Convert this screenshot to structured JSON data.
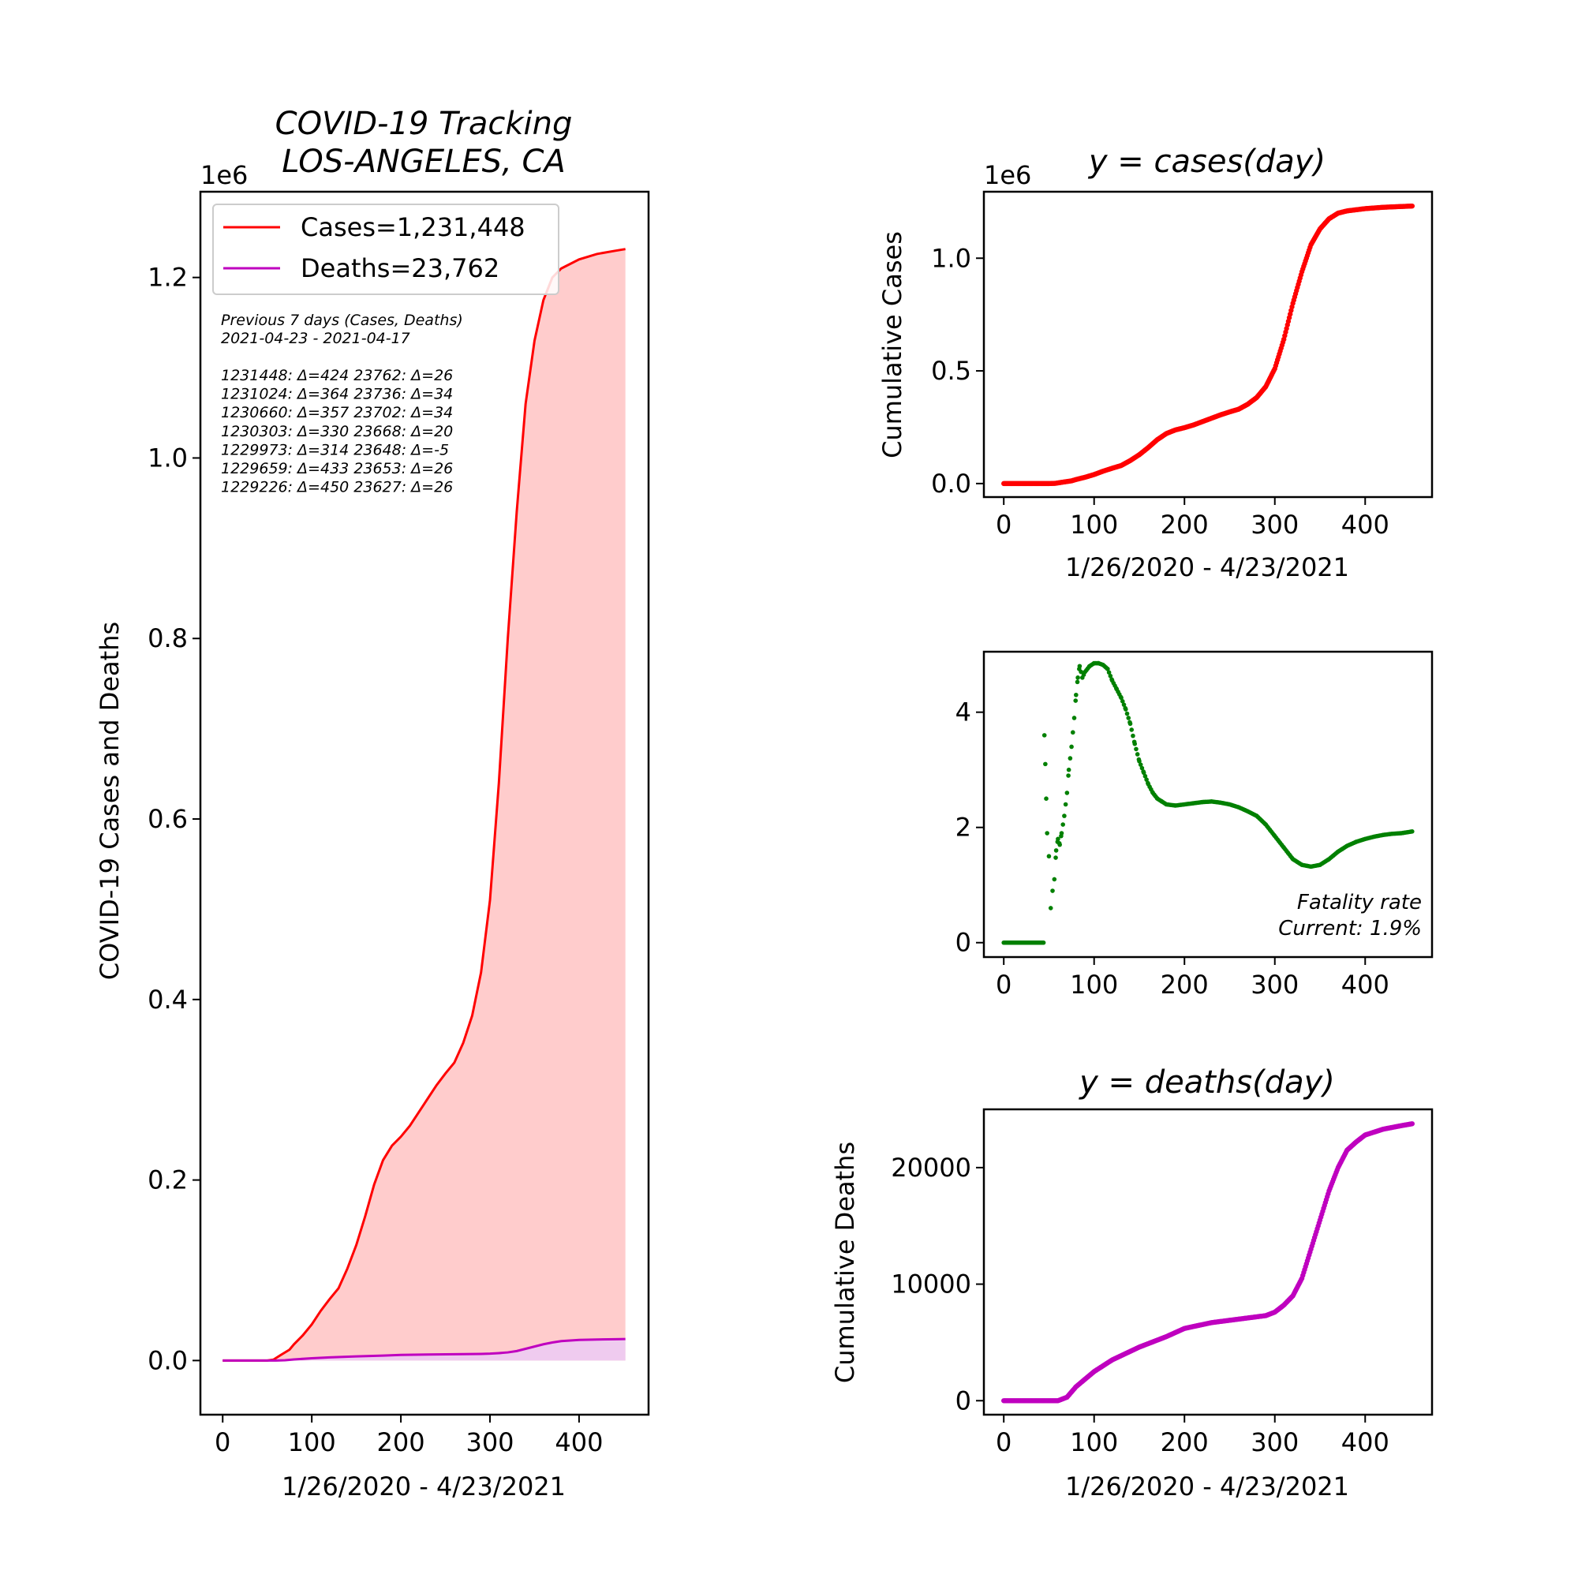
{
  "figure": {
    "title": "COVID-19 Tracking\nLOS-ANGELES, CA",
    "summary": {
      "heading": "Previous 7 days (Cases, Deaths)",
      "date_range": "2021-04-23 - 2021-04-17",
      "lines": [
        "1231448: Δ=424 23762: Δ=26",
        "1231024: Δ=364 23736: Δ=34",
        "1230660: Δ=357 23702: Δ=34",
        "1230303: Δ=330 23668: Δ=20",
        "1229973: Δ=314 23648: Δ=-5",
        "1229659: Δ=433 23653: Δ=26",
        "1229226: Δ=450 23627: Δ=26"
      ]
    }
  },
  "colors": {
    "cases": "#ff0000",
    "cases_fill": "#ffcccc",
    "deaths": "#bf00bf",
    "deaths_fill": "#efcbef",
    "fatality": "#008000"
  },
  "chart_data": [
    {
      "id": "main",
      "type": "area",
      "title": "COVID-19 Tracking\nLOS-ANGELES, CA",
      "xlabel": "1/26/2020 - 4/23/2021",
      "ylabel": "COVID-19 Cases and Deaths",
      "offset_label": "1e6",
      "xlim": [
        -25,
        478
      ],
      "ylim": [
        -60000,
        1295000
      ],
      "xticks": [
        0,
        100,
        200,
        300,
        400
      ],
      "yticks": [
        0,
        200000,
        400000,
        600000,
        800000,
        1000000,
        1200000
      ],
      "ytick_labels": [
        "0.0",
        "0.2",
        "0.4",
        "0.6",
        "0.8",
        "1.0",
        "1.2"
      ],
      "legend_position": "upper-left",
      "series": [
        {
          "name": "Cases",
          "legend": "Cases=1,231,448",
          "points": [
            [
              0,
              0
            ],
            [
              50,
              0
            ],
            [
              57,
              1000
            ],
            [
              65,
              6000
            ],
            [
              75,
              12000
            ],
            [
              80,
              18000
            ],
            [
              90,
              28000
            ],
            [
              100,
              40000
            ],
            [
              110,
              55000
            ],
            [
              120,
              68000
            ],
            [
              130,
              80000
            ],
            [
              140,
              102000
            ],
            [
              150,
              128000
            ],
            [
              160,
              160000
            ],
            [
              170,
              195000
            ],
            [
              180,
              222000
            ],
            [
              190,
              238000
            ],
            [
              200,
              248000
            ],
            [
              210,
              260000
            ],
            [
              220,
              275000
            ],
            [
              230,
              290000
            ],
            [
              240,
              305000
            ],
            [
              250,
              318000
            ],
            [
              260,
              330000
            ],
            [
              270,
              352000
            ],
            [
              280,
              382000
            ],
            [
              290,
              430000
            ],
            [
              300,
              510000
            ],
            [
              310,
              640000
            ],
            [
              320,
              800000
            ],
            [
              330,
              940000
            ],
            [
              340,
              1060000
            ],
            [
              350,
              1130000
            ],
            [
              360,
              1175000
            ],
            [
              370,
              1200000
            ],
            [
              380,
              1210000
            ],
            [
              400,
              1220000
            ],
            [
              420,
              1226000
            ],
            [
              440,
              1229500
            ],
            [
              452,
              1231448
            ]
          ]
        },
        {
          "name": "Deaths",
          "legend": "Deaths=23,762",
          "points": [
            [
              0,
              0
            ],
            [
              60,
              0
            ],
            [
              70,
              300
            ],
            [
              80,
              1200
            ],
            [
              100,
              2500
            ],
            [
              120,
              3500
            ],
            [
              150,
              4600
            ],
            [
              180,
              5500
            ],
            [
              200,
              6200
            ],
            [
              230,
              6700
            ],
            [
              260,
              7000
            ],
            [
              290,
              7300
            ],
            [
              300,
              7600
            ],
            [
              310,
              8200
            ],
            [
              320,
              9000
            ],
            [
              330,
              10500
            ],
            [
              340,
              13000
            ],
            [
              350,
              15500
            ],
            [
              360,
              18000
            ],
            [
              370,
              20000
            ],
            [
              380,
              21500
            ],
            [
              390,
              22200
            ],
            [
              400,
              22800
            ],
            [
              420,
              23300
            ],
            [
              440,
              23600
            ],
            [
              452,
              23762
            ]
          ]
        }
      ]
    },
    {
      "id": "cases",
      "type": "scatter",
      "title": "y = cases(day)",
      "xlabel": "1/26/2020 - 4/23/2021",
      "ylabel": "Cumulative Cases",
      "offset_label": "1e6",
      "xlim": [
        -22,
        474
      ],
      "ylim": [
        -60000,
        1295000
      ],
      "xticks": [
        0,
        100,
        200,
        300,
        400
      ],
      "yticks": [
        0,
        500000,
        1000000
      ],
      "ytick_labels": [
        "0.0",
        "0.5",
        "1.0"
      ],
      "series": [
        {
          "name": "Cases",
          "source": "main.Cases",
          "every": 1
        }
      ]
    },
    {
      "id": "fatality",
      "type": "scatter",
      "title": "",
      "xlabel": "",
      "ylabel": "",
      "annotation": "Fatality rate\nCurrent: 1.9%",
      "xlim": [
        -22,
        474
      ],
      "ylim": [
        -0.25,
        5.05
      ],
      "xticks": [
        0,
        100,
        200,
        300,
        400
      ],
      "yticks": [
        0,
        2,
        4
      ],
      "ytick_labels": [
        "0",
        "2",
        "4"
      ],
      "series": [
        {
          "name": "Fatality rate (%)",
          "points": [
            [
              0,
              0
            ],
            [
              5,
              0
            ],
            [
              10,
              0
            ],
            [
              15,
              0
            ],
            [
              20,
              0
            ],
            [
              25,
              0
            ],
            [
              30,
              0
            ],
            [
              35,
              0
            ],
            [
              40,
              0
            ],
            [
              44,
              0
            ],
            [
              45,
              3.6
            ],
            [
              46,
              3.1
            ],
            [
              47,
              2.5
            ],
            [
              48,
              1.9
            ],
            [
              50,
              1.5
            ],
            [
              52,
              0.6
            ],
            [
              54,
              0.9
            ],
            [
              56,
              1.1
            ],
            [
              58,
              1.6
            ],
            [
              60,
              1.8
            ],
            [
              62,
              1.7
            ],
            [
              64,
              1.9
            ],
            [
              67,
              2.2
            ],
            [
              70,
              2.6
            ],
            [
              72,
              3.0
            ],
            [
              75,
              3.4
            ],
            [
              78,
              3.9
            ],
            [
              80,
              4.3
            ],
            [
              82,
              4.6
            ],
            [
              84,
              4.8
            ],
            [
              87,
              4.6
            ],
            [
              90,
              4.7
            ],
            [
              95,
              4.8
            ],
            [
              100,
              4.85
            ],
            [
              105,
              4.85
            ],
            [
              110,
              4.82
            ],
            [
              115,
              4.75
            ],
            [
              120,
              4.55
            ],
            [
              125,
              4.4
            ],
            [
              130,
              4.25
            ],
            [
              135,
              4.05
            ],
            [
              140,
              3.8
            ],
            [
              145,
              3.45
            ],
            [
              150,
              3.15
            ],
            [
              155,
              2.95
            ],
            [
              160,
              2.75
            ],
            [
              165,
              2.6
            ],
            [
              170,
              2.5
            ],
            [
              175,
              2.45
            ],
            [
              180,
              2.4
            ],
            [
              190,
              2.38
            ],
            [
              200,
              2.4
            ],
            [
              210,
              2.42
            ],
            [
              220,
              2.44
            ],
            [
              230,
              2.45
            ],
            [
              240,
              2.43
            ],
            [
              250,
              2.4
            ],
            [
              260,
              2.35
            ],
            [
              270,
              2.28
            ],
            [
              280,
              2.2
            ],
            [
              290,
              2.05
            ],
            [
              300,
              1.85
            ],
            [
              310,
              1.65
            ],
            [
              320,
              1.45
            ],
            [
              330,
              1.35
            ],
            [
              340,
              1.32
            ],
            [
              350,
              1.35
            ],
            [
              360,
              1.45
            ],
            [
              370,
              1.58
            ],
            [
              380,
              1.68
            ],
            [
              390,
              1.75
            ],
            [
              400,
              1.8
            ],
            [
              410,
              1.84
            ],
            [
              420,
              1.87
            ],
            [
              430,
              1.89
            ],
            [
              440,
              1.9
            ],
            [
              452,
              1.93
            ]
          ]
        }
      ]
    },
    {
      "id": "deaths",
      "type": "scatter",
      "title": "y = deaths(day)",
      "xlabel": "1/26/2020 - 4/23/2021",
      "ylabel": "Cumulative Deaths",
      "xlim": [
        -22,
        474
      ],
      "ylim": [
        -1200,
        25000
      ],
      "xticks": [
        0,
        100,
        200,
        300,
        400
      ],
      "yticks": [
        0,
        10000,
        20000
      ],
      "ytick_labels": [
        "0",
        "10000",
        "20000"
      ],
      "series": [
        {
          "name": "Deaths",
          "source": "main.Deaths",
          "every": 1
        }
      ]
    }
  ]
}
